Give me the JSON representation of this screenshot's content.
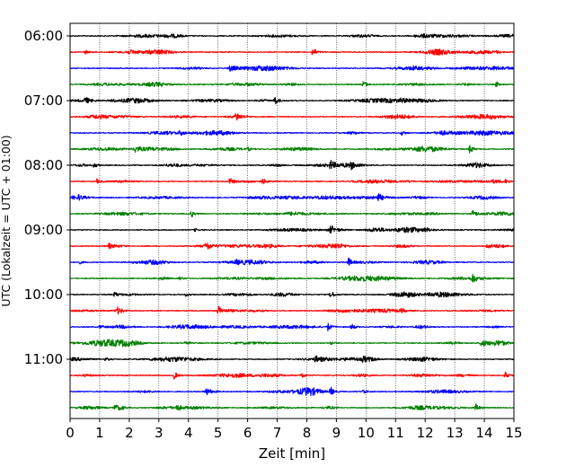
{
  "chart_data": {
    "type": "line",
    "title": "",
    "xlabel": "Zeit  [min]",
    "ylabel": "UTC (Lokalzeit = UTC + 01:00)",
    "xlim": [
      0,
      15
    ],
    "xticks": [
      "0",
      "1",
      "2",
      "3",
      "4",
      "5",
      "6",
      "7",
      "8",
      "9",
      "10",
      "11",
      "12",
      "13",
      "14",
      "15"
    ],
    "grid": "vertical dotted",
    "ylabels": [
      {
        "row": 0,
        "label": "06:00"
      },
      {
        "row": 4,
        "label": "07:00"
      },
      {
        "row": 8,
        "label": "08:00"
      },
      {
        "row": 12,
        "label": "09:00"
      },
      {
        "row": 16,
        "label": "10:00"
      },
      {
        "row": 20,
        "label": "11:00"
      }
    ],
    "colors": [
      "#000000",
      "#ff0000",
      "#0000ff",
      "#008000"
    ],
    "rows": [
      {
        "start": "06:00",
        "color": "#000000",
        "events": [
          {
            "t": 10.2,
            "a": 1
          }
        ]
      },
      {
        "start": "06:15",
        "color": "#ff0000",
        "events": [
          {
            "t": 8.2,
            "a": 6
          },
          {
            "t": 0.5,
            "a": 2
          },
          {
            "t": 14.4,
            "a": 1
          }
        ]
      },
      {
        "start": "06:30",
        "color": "#0000ff",
        "events": [
          {
            "t": 5.4,
            "a": 4
          },
          {
            "t": 11.6,
            "a": 1
          }
        ]
      },
      {
        "start": "06:45",
        "color": "#008000",
        "events": [
          {
            "t": 9.9,
            "a": 5
          },
          {
            "t": 14.4,
            "a": 3
          }
        ]
      },
      {
        "start": "07:00",
        "color": "#000000",
        "events": [
          {
            "t": 0.5,
            "a": 4
          },
          {
            "t": 1.4,
            "a": 2
          },
          {
            "t": 6.9,
            "a": 6
          },
          {
            "t": 11.2,
            "a": 2
          }
        ]
      },
      {
        "start": "07:15",
        "color": "#ff0000",
        "events": [
          {
            "t": 5.6,
            "a": 5
          }
        ]
      },
      {
        "start": "07:30",
        "color": "#0000ff",
        "events": [
          {
            "t": 3.7,
            "a": 3
          },
          {
            "t": 11.2,
            "a": 3
          },
          {
            "t": 12.5,
            "a": 2
          }
        ]
      },
      {
        "start": "07:45",
        "color": "#008000",
        "events": [
          {
            "t": 2.2,
            "a": 4
          },
          {
            "t": 6.0,
            "a": 2
          },
          {
            "t": 13.5,
            "a": 5
          }
        ]
      },
      {
        "start": "08:00",
        "color": "#000000",
        "events": [
          {
            "t": 0.8,
            "a": 3
          },
          {
            "t": 8.8,
            "a": 5
          },
          {
            "t": 9.5,
            "a": 3
          }
        ]
      },
      {
        "start": "08:15",
        "color": "#ff0000",
        "events": [
          {
            "t": 0.9,
            "a": 3
          },
          {
            "t": 5.4,
            "a": 4
          },
          {
            "t": 6.5,
            "a": 3
          },
          {
            "t": 14.7,
            "a": 2
          }
        ]
      },
      {
        "start": "08:30",
        "color": "#0000ff",
        "events": [
          {
            "t": 0.3,
            "a": 2
          },
          {
            "t": 10.4,
            "a": 5
          }
        ]
      },
      {
        "start": "08:45",
        "color": "#008000",
        "events": [
          {
            "t": 4.1,
            "a": 4
          },
          {
            "t": 13.6,
            "a": 5
          }
        ]
      },
      {
        "start": "09:00",
        "color": "#000000",
        "events": [
          {
            "t": 8.8,
            "a": 5
          },
          {
            "t": 4.2,
            "a": 2
          },
          {
            "t": 12.0,
            "a": 2
          }
        ]
      },
      {
        "start": "09:15",
        "color": "#ff0000",
        "events": [
          {
            "t": 1.3,
            "a": 3
          },
          {
            "t": 4.6,
            "a": 5
          },
          {
            "t": 14.1,
            "a": 3
          }
        ]
      },
      {
        "start": "09:30",
        "color": "#0000ff",
        "events": [
          {
            "t": 0.3,
            "a": 2
          },
          {
            "t": 9.4,
            "a": 5
          },
          {
            "t": 5.6,
            "a": 2
          }
        ]
      },
      {
        "start": "09:45",
        "color": "#008000",
        "events": [
          {
            "t": 3.7,
            "a": 2
          },
          {
            "t": 13.6,
            "a": 5
          }
        ]
      },
      {
        "start": "10:00",
        "color": "#000000",
        "events": [
          {
            "t": 1.5,
            "a": 3
          },
          {
            "t": 3.9,
            "a": 2
          },
          {
            "t": 8.8,
            "a": 5
          }
        ]
      },
      {
        "start": "10:15",
        "color": "#ff0000",
        "events": [
          {
            "t": 1.6,
            "a": 3
          },
          {
            "t": 5.0,
            "a": 6
          },
          {
            "t": 11.2,
            "a": 2
          }
        ]
      },
      {
        "start": "10:30",
        "color": "#0000ff",
        "events": [
          {
            "t": 1.0,
            "a": 2
          },
          {
            "t": 8.7,
            "a": 5
          },
          {
            "t": 9.5,
            "a": 4
          }
        ]
      },
      {
        "start": "10:45",
        "color": "#008000",
        "events": [
          {
            "t": 3.9,
            "a": 3
          },
          {
            "t": 8.8,
            "a": 2
          },
          {
            "t": 13.9,
            "a": 5
          }
        ]
      },
      {
        "start": "11:00",
        "color": "#000000",
        "events": [
          {
            "t": 1.2,
            "a": 2
          },
          {
            "t": 8.3,
            "a": 3
          },
          {
            "t": 9.9,
            "a": 3
          }
        ]
      },
      {
        "start": "11:15",
        "color": "#ff0000",
        "events": [
          {
            "t": 3.5,
            "a": 5
          },
          {
            "t": 7.8,
            "a": 4
          },
          {
            "t": 14.7,
            "a": 4
          }
        ]
      },
      {
        "start": "11:30",
        "color": "#0000ff",
        "events": [
          {
            "t": 4.6,
            "a": 4
          },
          {
            "t": 8.8,
            "a": 5
          },
          {
            "t": 9.9,
            "a": 3
          }
        ]
      },
      {
        "start": "11:45",
        "color": "#008000",
        "events": [
          {
            "t": 1.5,
            "a": 3
          },
          {
            "t": 3.6,
            "a": 3
          },
          {
            "t": 13.7,
            "a": 5
          }
        ]
      }
    ]
  }
}
